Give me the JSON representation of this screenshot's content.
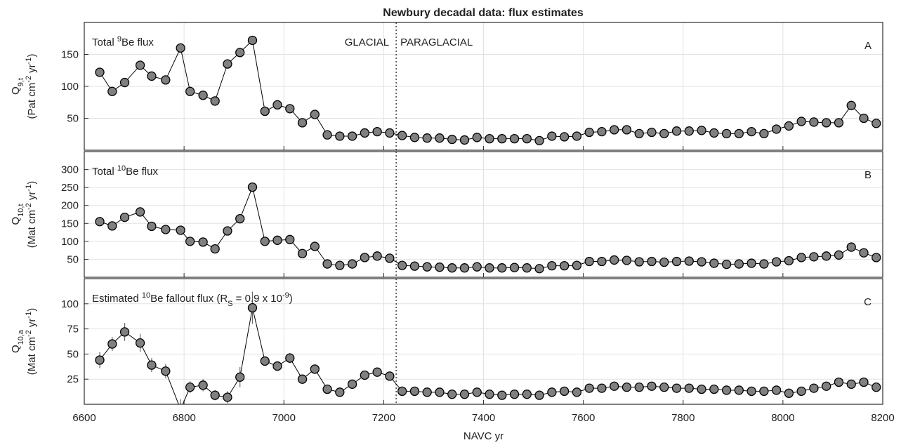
{
  "chart_data": [
    {
      "type": "line",
      "title": "Newbury decadal data: flux estimates",
      "panel": "A",
      "annotation": [
        "Total ",
        "9",
        "Be flux"
      ],
      "ylabel": [
        "Q",
        "9,t"
      ],
      "yunits": [
        "(Pat cm",
        "-2",
        " yr",
        "-1",
        ")"
      ],
      "region_labels": [
        "GLACIAL",
        "PARAGLACIAL"
      ],
      "divider_x": 7225,
      "xlim": [
        6600,
        8200
      ],
      "xticks": [
        6600,
        6800,
        7000,
        7200,
        7400,
        7600,
        7800,
        8000,
        8200
      ],
      "ylim": [
        0,
        200
      ],
      "yticks": [
        50,
        100,
        150
      ],
      "grid": true,
      "color": "#808080",
      "x": [
        6631,
        6656,
        6681,
        6712,
        6735,
        6763,
        6793,
        6812,
        6838,
        6862,
        6887,
        6912,
        6937,
        6962,
        6987,
        7012,
        7037,
        7062,
        7087,
        7112,
        7137,
        7162,
        7187,
        7212,
        7237,
        7262,
        7287,
        7312,
        7337,
        7362,
        7387,
        7412,
        7437,
        7462,
        7487,
        7512,
        7537,
        7562,
        7587,
        7612,
        7637,
        7662,
        7687,
        7712,
        7737,
        7762,
        7787,
        7812,
        7837,
        7862,
        7887,
        7912,
        7937,
        7962,
        7987,
        8012,
        8037,
        8062,
        8087,
        8112,
        8137,
        8162,
        8187
      ],
      "values": [
        122,
        92,
        106,
        133,
        116,
        110,
        160,
        92,
        86,
        77,
        135,
        153,
        172,
        61,
        71,
        65,
        43,
        56,
        24,
        22,
        22,
        27,
        29,
        27,
        23,
        20,
        19,
        19,
        17,
        16,
        20,
        18,
        18,
        18,
        18,
        15,
        22,
        21,
        22,
        28,
        29,
        32,
        32,
        26,
        28,
        26,
        30,
        30,
        31,
        27,
        26,
        26,
        29,
        26,
        33,
        38,
        45,
        44,
        43,
        43,
        70,
        50,
        42
      ]
    },
    {
      "type": "line",
      "panel": "B",
      "annotation": [
        "Total ",
        "10",
        "Be flux"
      ],
      "ylabel": [
        "Q",
        "10,t"
      ],
      "yunits": [
        "(Mat cm",
        "-2",
        " yr",
        "-1",
        ")"
      ],
      "divider_x": 7225,
      "xlim": [
        6600,
        8200
      ],
      "xticks": [
        6600,
        6800,
        7000,
        7200,
        7400,
        7600,
        7800,
        8000,
        8200
      ],
      "ylim": [
        0,
        350
      ],
      "yticks": [
        50,
        100,
        150,
        200,
        250,
        300
      ],
      "grid": true,
      "color": "#808080",
      "x": [
        6631,
        6656,
        6681,
        6712,
        6735,
        6763,
        6793,
        6812,
        6838,
        6862,
        6887,
        6912,
        6937,
        6962,
        6987,
        7012,
        7037,
        7062,
        7087,
        7112,
        7137,
        7162,
        7187,
        7212,
        7237,
        7262,
        7287,
        7312,
        7337,
        7362,
        7387,
        7412,
        7437,
        7462,
        7487,
        7512,
        7537,
        7562,
        7587,
        7612,
        7637,
        7662,
        7687,
        7712,
        7737,
        7762,
        7787,
        7812,
        7837,
        7862,
        7887,
        7912,
        7937,
        7962,
        7987,
        8012,
        8037,
        8062,
        8087,
        8112,
        8137,
        8162,
        8187
      ],
      "values": [
        155,
        143,
        167,
        182,
        142,
        133,
        131,
        100,
        98,
        79,
        129,
        163,
        251,
        100,
        103,
        105,
        66,
        86,
        37,
        33,
        37,
        55,
        59,
        53,
        33,
        31,
        29,
        28,
        26,
        26,
        29,
        26,
        26,
        27,
        26,
        24,
        32,
        32,
        33,
        44,
        44,
        48,
        47,
        43,
        44,
        42,
        44,
        45,
        43,
        39,
        36,
        37,
        39,
        37,
        43,
        46,
        55,
        57,
        59,
        62,
        84,
        68,
        55
      ]
    },
    {
      "type": "line",
      "panel": "C",
      "annotation": [
        "Estimated ",
        "10",
        "Be fallout flux (R",
        "S",
        " = 0.9 x 10",
        "-9",
        ")"
      ],
      "ylabel": [
        "Q",
        "10,a"
      ],
      "yunits": [
        "(Mat cm",
        "-2",
        " yr",
        "-1",
        ")"
      ],
      "divider_x": 7225,
      "xlabel": "NAVC yr",
      "xlim": [
        6600,
        8200
      ],
      "xticks": [
        6600,
        6800,
        7000,
        7200,
        7400,
        7600,
        7800,
        8000,
        8200
      ],
      "ylim": [
        0,
        125
      ],
      "yticks": [
        25,
        50,
        75,
        100
      ],
      "grid": true,
      "color": "#808080",
      "x": [
        6631,
        6656,
        6681,
        6712,
        6735,
        6763,
        6793,
        6812,
        6838,
        6862,
        6887,
        6912,
        6937,
        6962,
        6987,
        7012,
        7037,
        7062,
        7087,
        7112,
        7137,
        7162,
        7187,
        7212,
        7237,
        7262,
        7287,
        7312,
        7337,
        7362,
        7387,
        7412,
        7437,
        7462,
        7487,
        7512,
        7537,
        7562,
        7587,
        7612,
        7637,
        7662,
        7687,
        7712,
        7737,
        7762,
        7787,
        7812,
        7837,
        7862,
        7887,
        7912,
        7937,
        7962,
        7987,
        8012,
        8037,
        8062,
        8087,
        8112,
        8137,
        8162,
        8187
      ],
      "values": [
        44,
        60,
        72,
        61,
        39,
        33,
        -5,
        17,
        19,
        9,
        7,
        27,
        96,
        43,
        38,
        46,
        25,
        35,
        15,
        12,
        20,
        29,
        32,
        28,
        13,
        13,
        12,
        12,
        10,
        10,
        12,
        10,
        9,
        10,
        10,
        9,
        12,
        13,
        12,
        16,
        16,
        18,
        17,
        17,
        18,
        17,
        16,
        16,
        15,
        15,
        14,
        14,
        13,
        13,
        14,
        11,
        13,
        16,
        18,
        22,
        20,
        22,
        17
      ],
      "errors": [
        8,
        7,
        9,
        9,
        7,
        7,
        10,
        6,
        6,
        5,
        6,
        10,
        16,
        4,
        4,
        5,
        3,
        4,
        3,
        2,
        2,
        3,
        3,
        3,
        2,
        2,
        2,
        2,
        2,
        2,
        2,
        2,
        2,
        2,
        2,
        2,
        2,
        2,
        2,
        2,
        2,
        2,
        2,
        2,
        2,
        2,
        2,
        2,
        2,
        2,
        2,
        2,
        2,
        2,
        2,
        2,
        2,
        2,
        2,
        3,
        3,
        3,
        2
      ]
    }
  ]
}
